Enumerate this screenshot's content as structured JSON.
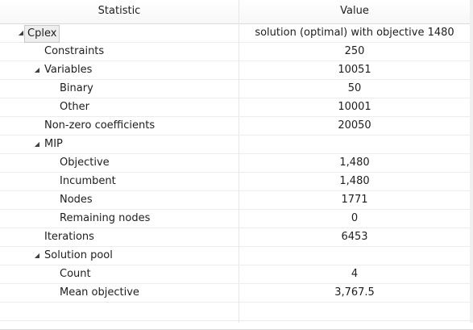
{
  "header": {
    "statistic_label": "Statistic",
    "value_label": "Value"
  },
  "icons": {
    "expanded": "triangle-down-right-icon"
  },
  "rows": [
    {
      "level": 0,
      "expanded": true,
      "selected": true,
      "label": "Cplex",
      "value": "solution (optimal) with objective 1480"
    },
    {
      "level": 1,
      "label": "Constraints",
      "value": "250"
    },
    {
      "level": 1,
      "expanded": true,
      "label": "Variables",
      "value": "10051"
    },
    {
      "level": 2,
      "label": "Binary",
      "value": "50"
    },
    {
      "level": 2,
      "label": "Other",
      "value": "10001"
    },
    {
      "level": 1,
      "label": "Non-zero coefficients",
      "value": "20050"
    },
    {
      "level": 1,
      "expanded": true,
      "label": "MIP",
      "value": ""
    },
    {
      "level": 2,
      "label": "Objective",
      "value": "1,480"
    },
    {
      "level": 2,
      "label": "Incumbent",
      "value": "1,480"
    },
    {
      "level": 2,
      "label": "Nodes",
      "value": "1771"
    },
    {
      "level": 2,
      "label": "Remaining nodes",
      "value": "0"
    },
    {
      "level": 1,
      "label": "Iterations",
      "value": "6453"
    },
    {
      "level": 1,
      "expanded": true,
      "label": "Solution pool",
      "value": ""
    },
    {
      "level": 2,
      "label": "Count",
      "value": "4"
    },
    {
      "level": 2,
      "label": "Mean objective",
      "value": "3,767.5"
    },
    {
      "level": 0,
      "label": "",
      "value": ""
    }
  ]
}
